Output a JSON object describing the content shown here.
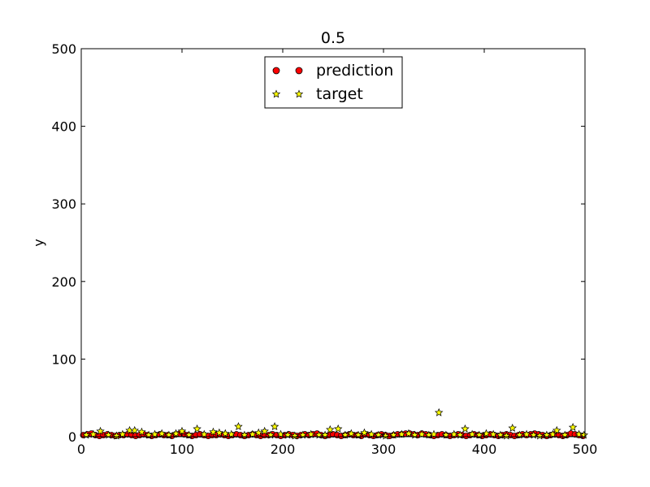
{
  "chart_data": {
    "type": "scatter",
    "title": "0.5",
    "xlabel": "",
    "ylabel": "y",
    "xlim": [
      0,
      500
    ],
    "ylim": [
      0,
      500
    ],
    "xticks": [
      0,
      100,
      200,
      300,
      400,
      500
    ],
    "yticks": [
      0,
      100,
      200,
      300,
      400,
      500
    ],
    "grid": false,
    "legend": {
      "position": "top-center"
    },
    "series": [
      {
        "name": "prediction",
        "marker": "circle",
        "color": "#ff0000",
        "x": [
          2,
          6,
          10,
          14,
          18,
          22,
          26,
          30,
          34,
          38,
          42,
          46,
          50,
          54,
          58,
          62,
          66,
          70,
          74,
          78,
          82,
          86,
          90,
          94,
          98,
          102,
          106,
          110,
          114,
          118,
          122,
          126,
          130,
          134,
          138,
          142,
          146,
          150,
          154,
          158,
          162,
          166,
          170,
          174,
          178,
          182,
          186,
          190,
          194,
          198,
          202,
          206,
          210,
          214,
          218,
          222,
          226,
          230,
          234,
          238,
          242,
          246,
          250,
          254,
          258,
          262,
          266,
          270,
          274,
          278,
          282,
          286,
          290,
          294,
          298,
          302,
          306,
          310,
          314,
          318,
          322,
          326,
          330,
          334,
          338,
          342,
          346,
          350,
          354,
          358,
          362,
          366,
          370,
          374,
          378,
          382,
          386,
          390,
          394,
          398,
          402,
          406,
          410,
          414,
          418,
          422,
          426,
          430,
          434,
          438,
          442,
          446,
          450,
          454,
          458,
          462,
          466,
          470,
          474,
          478,
          482,
          486,
          490,
          494,
          498
        ],
        "y": [
          2,
          3,
          4,
          2,
          1,
          2,
          3,
          2,
          1,
          2,
          2,
          3,
          2,
          1,
          2,
          3,
          2,
          1,
          2,
          3,
          2,
          2,
          1,
          3,
          4,
          3,
          2,
          1,
          2,
          3,
          2,
          1,
          2,
          2,
          3,
          2,
          1,
          2,
          3,
          2,
          1,
          2,
          3,
          2,
          1,
          2,
          2,
          3,
          2,
          1,
          2,
          3,
          2,
          1,
          2,
          3,
          2,
          3,
          4,
          2,
          1,
          2,
          3,
          2,
          1,
          2,
          3,
          2,
          2,
          1,
          3,
          2,
          1,
          2,
          3,
          2,
          1,
          2,
          3,
          3,
          4,
          4,
          3,
          2,
          4,
          3,
          2,
          1,
          2,
          3,
          2,
          1,
          2,
          3,
          2,
          1,
          2,
          3,
          2,
          1,
          2,
          3,
          2,
          1,
          2,
          3,
          2,
          1,
          2,
          3,
          2,
          3,
          4,
          3,
          2,
          1,
          2,
          3,
          2,
          1,
          2,
          4,
          3,
          2,
          1
        ]
      },
      {
        "name": "target",
        "marker": "star",
        "color": "#ffff00",
        "x": [
          5,
          12,
          19,
          27,
          35,
          41,
          48,
          53,
          60,
          67,
          73,
          80,
          87,
          94,
          100,
          107,
          115,
          122,
          131,
          137,
          143,
          149,
          156,
          162,
          170,
          176,
          182,
          188,
          192,
          198,
          205,
          212,
          220,
          228,
          236,
          242,
          247,
          255,
          262,
          268,
          275,
          281,
          288,
          295,
          302,
          310,
          318,
          325,
          331,
          338,
          345,
          350,
          355,
          362,
          370,
          376,
          381,
          388,
          395,
          402,
          409,
          416,
          422,
          428,
          435,
          442,
          449,
          455,
          462,
          468,
          472,
          480,
          488,
          494,
          499
        ],
        "y": [
          2,
          3,
          7,
          2,
          1,
          3,
          8,
          8,
          6,
          2,
          3,
          4,
          2,
          4,
          7,
          2,
          10,
          3,
          6,
          5,
          4,
          3,
          13,
          2,
          3,
          5,
          7,
          2,
          13,
          3,
          2,
          1,
          2,
          3,
          2,
          2,
          9,
          10,
          2,
          4,
          2,
          5,
          3,
          2,
          1,
          2,
          3,
          4,
          2,
          3,
          2,
          3,
          31,
          2,
          3,
          2,
          10,
          3,
          2,
          4,
          3,
          2,
          1,
          11,
          2,
          3,
          2,
          1,
          2,
          3,
          8,
          2,
          12,
          3,
          2
        ]
      }
    ]
  }
}
